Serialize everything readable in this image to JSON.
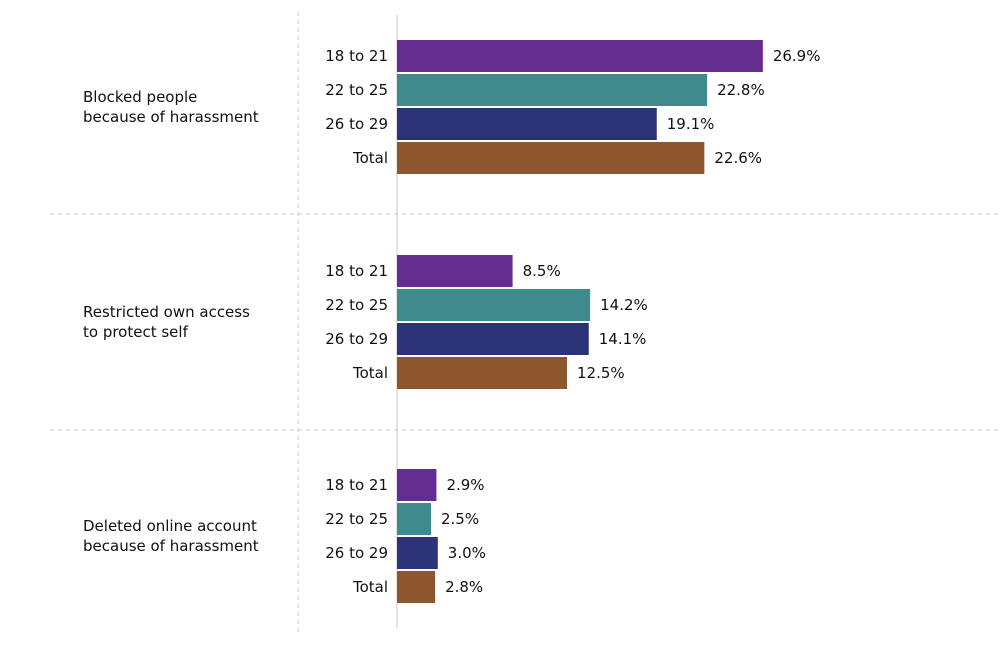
{
  "chart_data": {
    "type": "bar",
    "orientation": "horizontal",
    "groups": [
      {
        "label": "Blocked people\nbecause of harassment",
        "values": [
          26.9,
          22.8,
          19.1,
          22.6
        ],
        "value_labels": [
          "26.9%",
          "22.8%",
          "19.1%",
          "22.6%"
        ]
      },
      {
        "label": "Restricted own access\nto protect self",
        "values": [
          8.5,
          14.2,
          14.1,
          12.5
        ],
        "value_labels": [
          "8.5%",
          "14.2%",
          "14.1%",
          "12.5%"
        ]
      },
      {
        "label": "Deleted online account\nbecause of harassment",
        "values": [
          2.9,
          2.5,
          3.0,
          2.8
        ],
        "value_labels": [
          "2.9%",
          "2.5%",
          "3.0%",
          "2.8%"
        ]
      }
    ],
    "categories": [
      "18 to 21",
      "22 to 25",
      "26 to 29",
      "Total"
    ],
    "colors": [
      "#662d91",
      "#3f8a8c",
      "#2b3278",
      "#8e562e"
    ],
    "unit": "%",
    "xlim": [
      0,
      30
    ],
    "grid": false
  }
}
